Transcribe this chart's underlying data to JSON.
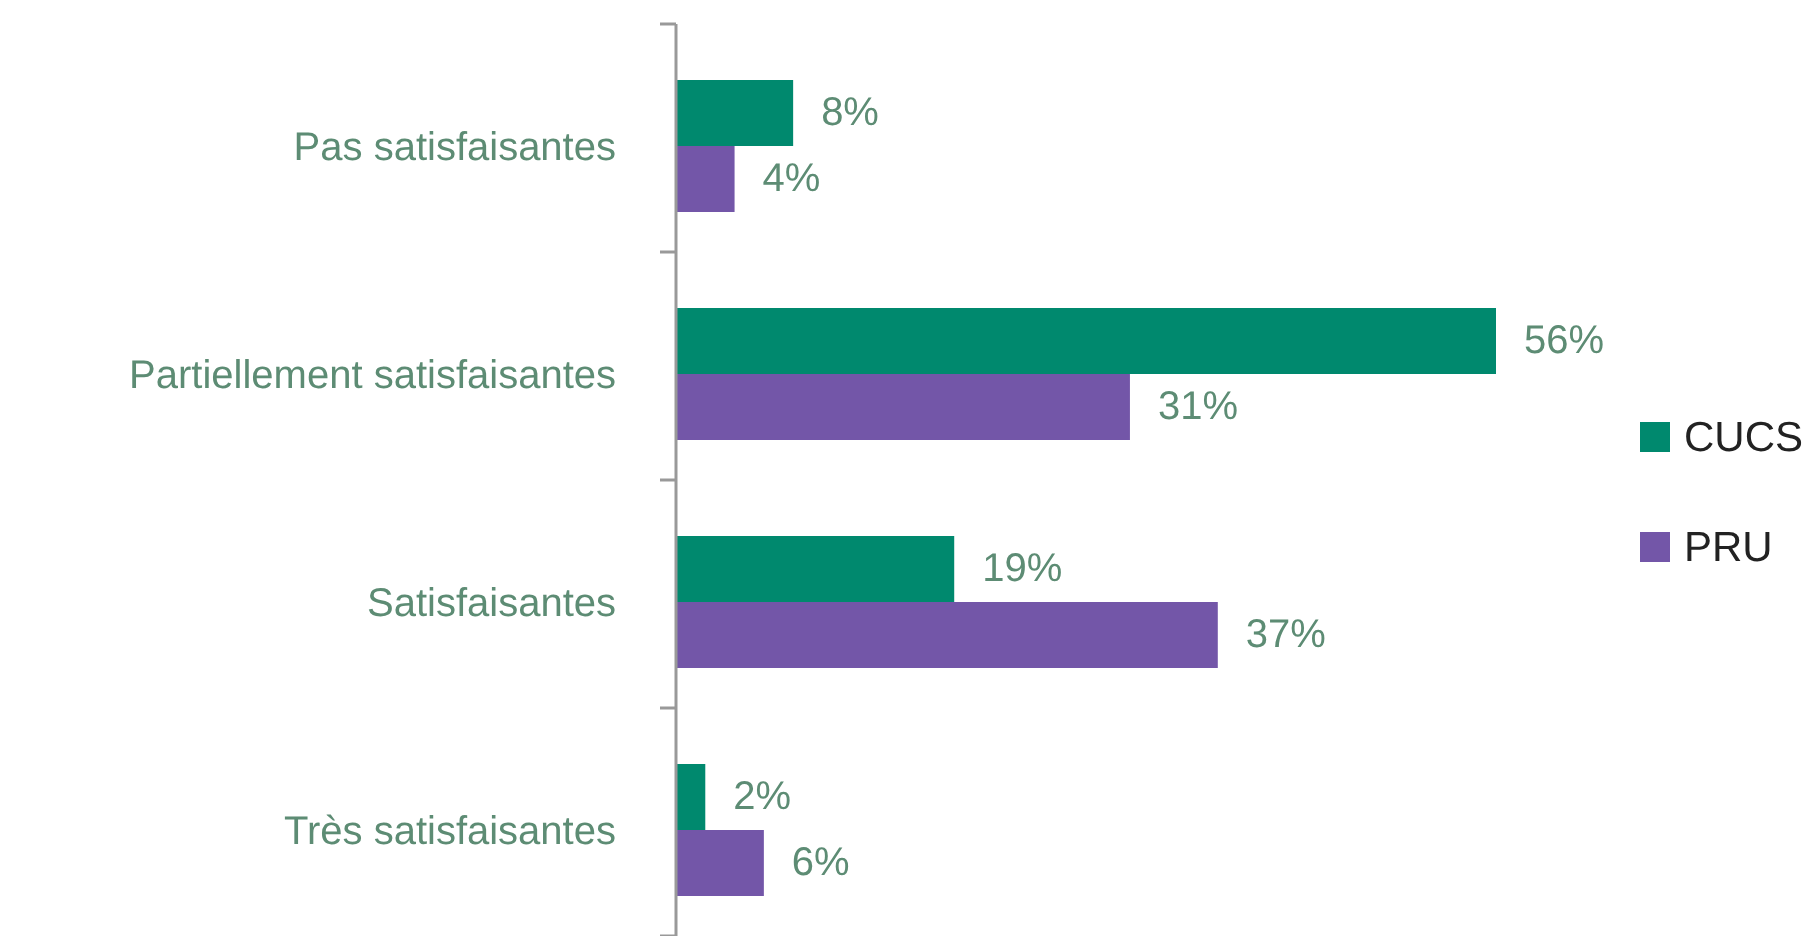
{
  "chart_data": {
    "type": "bar",
    "orientation": "horizontal",
    "categories": [
      "Pas satisfaisantes",
      "Partiellement satisfaisantes",
      "Satisfaisantes",
      "Très satisfaisantes"
    ],
    "series": [
      {
        "name": "CUCS",
        "color": "#00896e",
        "values": [
          8,
          56,
          19,
          2
        ],
        "value_labels": [
          "8%",
          "56%",
          "19%",
          "2%"
        ]
      },
      {
        "name": "PRU",
        "color": "#7356a8",
        "values": [
          4,
          31,
          37,
          6
        ],
        "value_labels": [
          "4%",
          "31%",
          "37%",
          "6%"
        ]
      }
    ],
    "legend": "right"
  }
}
